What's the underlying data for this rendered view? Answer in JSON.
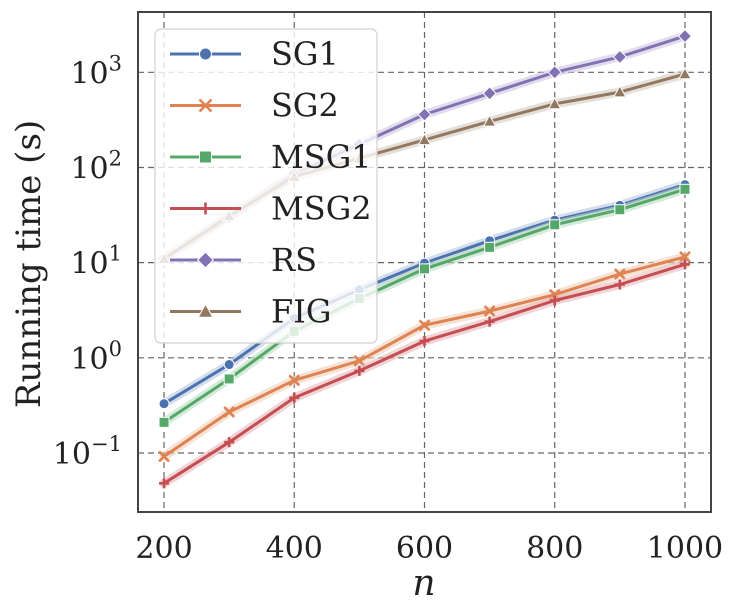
{
  "chart_data": {
    "type": "line",
    "x_scale": "linear",
    "y_scale": "log",
    "xlabel": "n",
    "ylabel": "Running time (s)",
    "xlim": [
      160,
      1040
    ],
    "ylim": [
      0.024,
      4300
    ],
    "xticks": [
      200,
      400,
      600,
      800,
      1000
    ],
    "yticks": [
      {
        "value": 0.1,
        "base": "10",
        "exp": "−1"
      },
      {
        "value": 1,
        "base": "10",
        "exp": "0"
      },
      {
        "value": 10,
        "base": "10",
        "exp": "1"
      },
      {
        "value": 100,
        "base": "10",
        "exp": "2"
      },
      {
        "value": 1000,
        "base": "10",
        "exp": "3"
      }
    ],
    "grid": true,
    "legend_position": "top-left",
    "series": [
      {
        "name": "SG1",
        "color": "#4c72b0",
        "marker": "circle",
        "x": [
          200,
          300,
          400,
          500,
          600,
          700,
          800,
          900,
          1000
        ],
        "y": [
          0.33,
          0.85,
          2.6,
          5.2,
          9.9,
          17,
          28,
          40,
          66
        ]
      },
      {
        "name": "SG2",
        "color": "#dd8452",
        "marker": "x",
        "x": [
          200,
          300,
          400,
          500,
          600,
          700,
          800,
          900,
          1000
        ],
        "y": [
          0.092,
          0.27,
          0.58,
          0.93,
          2.2,
          3.1,
          4.6,
          7.6,
          11.5
        ]
      },
      {
        "name": "MSG1",
        "color": "#55a868",
        "marker": "square",
        "x": [
          200,
          300,
          400,
          500,
          600,
          700,
          800,
          900,
          1000
        ],
        "y": [
          0.21,
          0.6,
          1.9,
          4.2,
          8.6,
          14.5,
          25,
          36,
          59
        ]
      },
      {
        "name": "MSG2",
        "color": "#c44e52",
        "marker": "plus",
        "x": [
          200,
          300,
          400,
          500,
          600,
          700,
          800,
          900,
          1000
        ],
        "y": [
          0.048,
          0.13,
          0.38,
          0.73,
          1.5,
          2.4,
          4,
          5.9,
          9.6
        ]
      },
      {
        "name": "RS",
        "color": "#8172b3",
        "marker": "diamond",
        "x": [
          200,
          300,
          400,
          500,
          600,
          700,
          800,
          900,
          1000
        ],
        "y": [
          11,
          30,
          85,
          175,
          360,
          600,
          1000,
          1450,
          2400
        ]
      },
      {
        "name": "FIG",
        "color": "#937860",
        "marker": "triangle",
        "x": [
          200,
          300,
          400,
          500,
          600,
          700,
          800,
          900,
          1000
        ],
        "y": [
          11,
          31,
          80,
          125,
          195,
          305,
          465,
          620,
          960
        ]
      }
    ]
  }
}
